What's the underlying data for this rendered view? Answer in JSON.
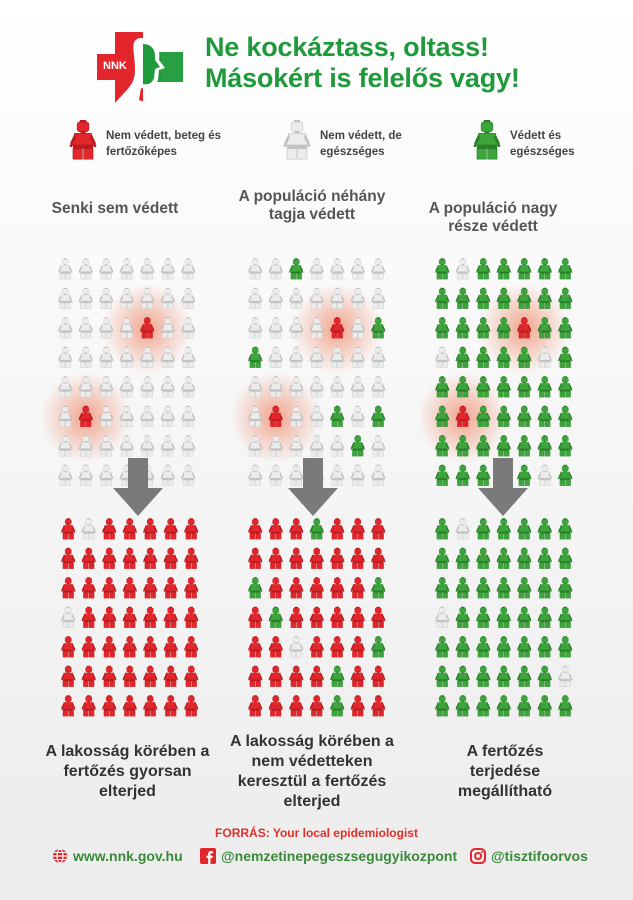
{
  "header": {
    "logo_text": "NNK",
    "title_line1": "Ne kockáztass, oltass!",
    "title_line2": "Másokért is felelős vagy!"
  },
  "legend": [
    {
      "label": "Nem védett, beteg és fertőzőképes",
      "color": "#e3262c"
    },
    {
      "label": "Nem védett, de egészséges",
      "color": "#e6e6e6"
    },
    {
      "label": "Védett és egészséges",
      "color": "#3ca63b"
    }
  ],
  "colors": {
    "red": "#e3262c",
    "white": "#e6e6e6",
    "green": "#3ca63b",
    "title_green": "#1e9a3a",
    "arrow_gray": "#7a7a7a"
  },
  "columns": [
    {
      "heading": "Senki sem védett",
      "footer": "A lakosság körében a fertőzés gyorsan elterjed",
      "before": [
        "WWWWWWW",
        "WWWWWWW",
        "WWWWRWW",
        "WWWWWWW",
        "WWWWWWW",
        "WRWWWWW",
        "WWWWWWW",
        "WWWWWWW"
      ],
      "after": [
        "RWRRRRR",
        "RRRRRRR",
        "RRRRRRR",
        "WRRRRRR",
        "RRRRRRR",
        "RRRRRRR",
        "RRRRRRR"
      ]
    },
    {
      "heading": "A populáció néhány tagja védett",
      "footer": "A lakosság körében a nem védetteken keresztül a fertőzés elterjed",
      "before": [
        "WWGWWWW",
        "WWWWWWW",
        "WWWWRWG",
        "GWWWWWW",
        "WWWWWWW",
        "WRWWGWG",
        "WWWWWGW",
        "WWWWWWW"
      ],
      "after": [
        "RRRGRRR",
        "RRRRRRR",
        "GRRRRRG",
        "RGRRRRR",
        "RRWRRRG",
        "RRRRGRR",
        "RRRRGRR"
      ]
    },
    {
      "heading": "A populáció nagy része védett",
      "footer": "A fertőzés terjedése megállítható",
      "before": [
        "GWGGGGG",
        "GGGGGGG",
        "GGGGRGG",
        "WGGGGWG",
        "GGGGGGG",
        "GRGGGGG",
        "GGGGGGG",
        "GGGGGWG"
      ],
      "after": [
        "GWGGGGG",
        "GGGGGGG",
        "GGGGGGG",
        "WGGGGGG",
        "GGGGGGG",
        "GGGGGGW",
        "GGGGGGG"
      ]
    }
  ],
  "footer": {
    "source_label": "FORRÁS:",
    "source_value": "Your local epidemiologist",
    "website": "www.nnk.gov.hu",
    "facebook": "@nemzetinepegeszsegugyikozpont",
    "instagram": "@tisztifoorvos",
    "icons": [
      "globe-icon",
      "facebook-icon",
      "instagram-icon"
    ]
  }
}
